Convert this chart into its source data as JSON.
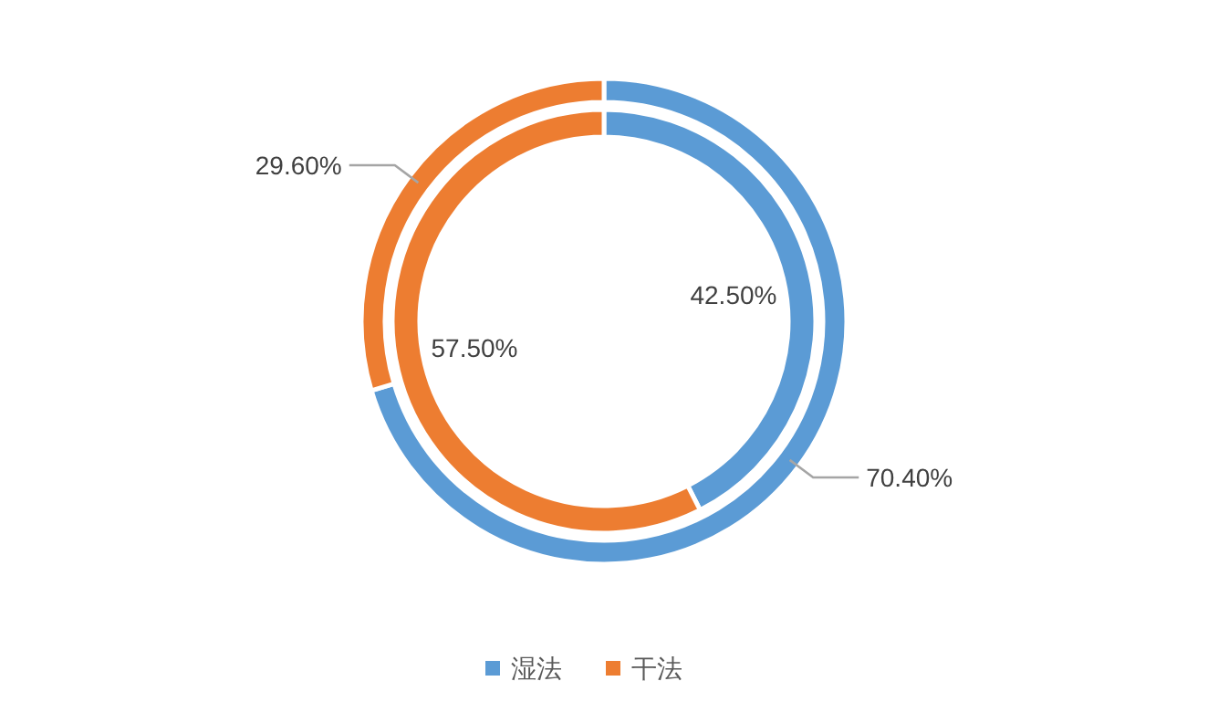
{
  "chart_data": {
    "type": "donut",
    "categories": [
      "湿法",
      "干法"
    ],
    "colors": [
      "#5b9bd5",
      "#ed7d31"
    ],
    "series": [
      {
        "values": [
          70.4,
          29.6
        ],
        "value_labels": [
          "70.40%",
          "29.60%"
        ]
      },
      {
        "values": [
          42.5,
          57.5
        ],
        "value_labels": [
          "42.50%",
          "57.50%"
        ]
      }
    ],
    "legend": "bottom"
  }
}
